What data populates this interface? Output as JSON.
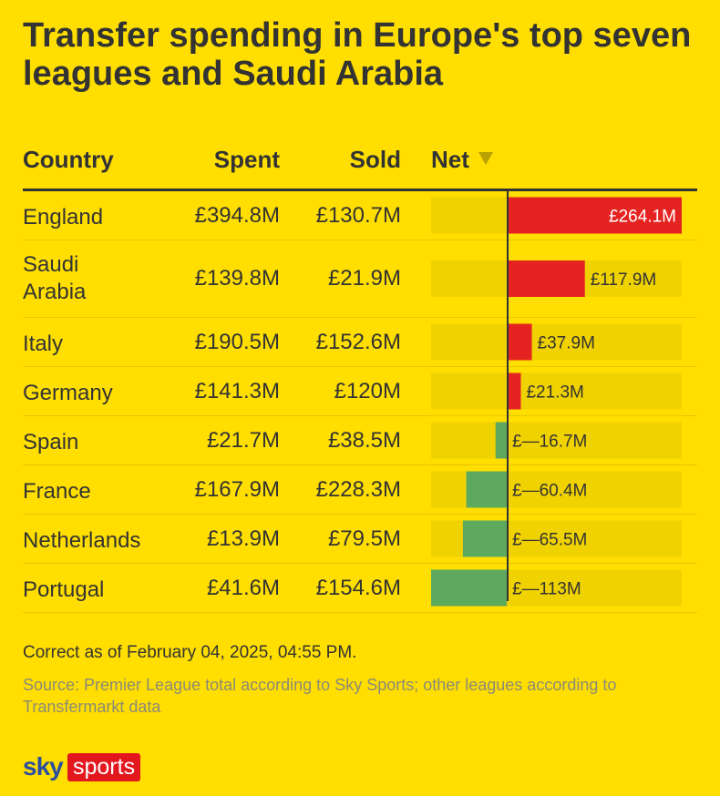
{
  "title": "Transfer spending in Europe's top seven leagues and Saudi Arabia",
  "chart_data": {
    "type": "table",
    "columns": [
      "Country",
      "Spent",
      "Sold",
      "Net"
    ],
    "unit": "£M",
    "rows": [
      {
        "country": "England",
        "spent": "£394.8M",
        "sold": "£130.7M",
        "net": 264.1,
        "net_label": "£264.1M"
      },
      {
        "country": "Saudi Arabia",
        "spent": "£139.8M",
        "sold": "£21.9M",
        "net": 117.9,
        "net_label": "£117.9M"
      },
      {
        "country": "Italy",
        "spent": "£190.5M",
        "sold": "£152.6M",
        "net": 37.9,
        "net_label": "£37.9M"
      },
      {
        "country": "Germany",
        "spent": "£141.3M",
        "sold": "£120M",
        "net": 21.3,
        "net_label": "£21.3M"
      },
      {
        "country": "Spain",
        "spent": "£21.7M",
        "sold": "£38.5M",
        "net": -16.7,
        "net_label": "£—16.7M"
      },
      {
        "country": "France",
        "spent": "£167.9M",
        "sold": "£228.3M",
        "net": -60.4,
        "net_label": "£—60.4M"
      },
      {
        "country": "Netherlands",
        "spent": "£13.9M",
        "sold": "£79.5M",
        "net": -65.5,
        "net_label": "£—65.5M"
      },
      {
        "country": "Portugal",
        "spent": "£41.6M",
        "sold": "£154.6M",
        "net": -113,
        "net_label": "£—113M"
      }
    ],
    "net_range": [
      -113,
      264.1
    ],
    "sort": "net-descending",
    "colors": {
      "positive": "#e52421",
      "negative": "#5daa5f",
      "bar_track": "#f0d200"
    }
  },
  "note": "Correct as of February 04, 2025, 04:55 PM.",
  "source": "Source: Premier League total according to Sky Sports; other leagues according to Transfermarkt data",
  "logo": {
    "brand": "sky",
    "product": "sports"
  },
  "icons": {
    "sort": "triangle-down-icon"
  }
}
